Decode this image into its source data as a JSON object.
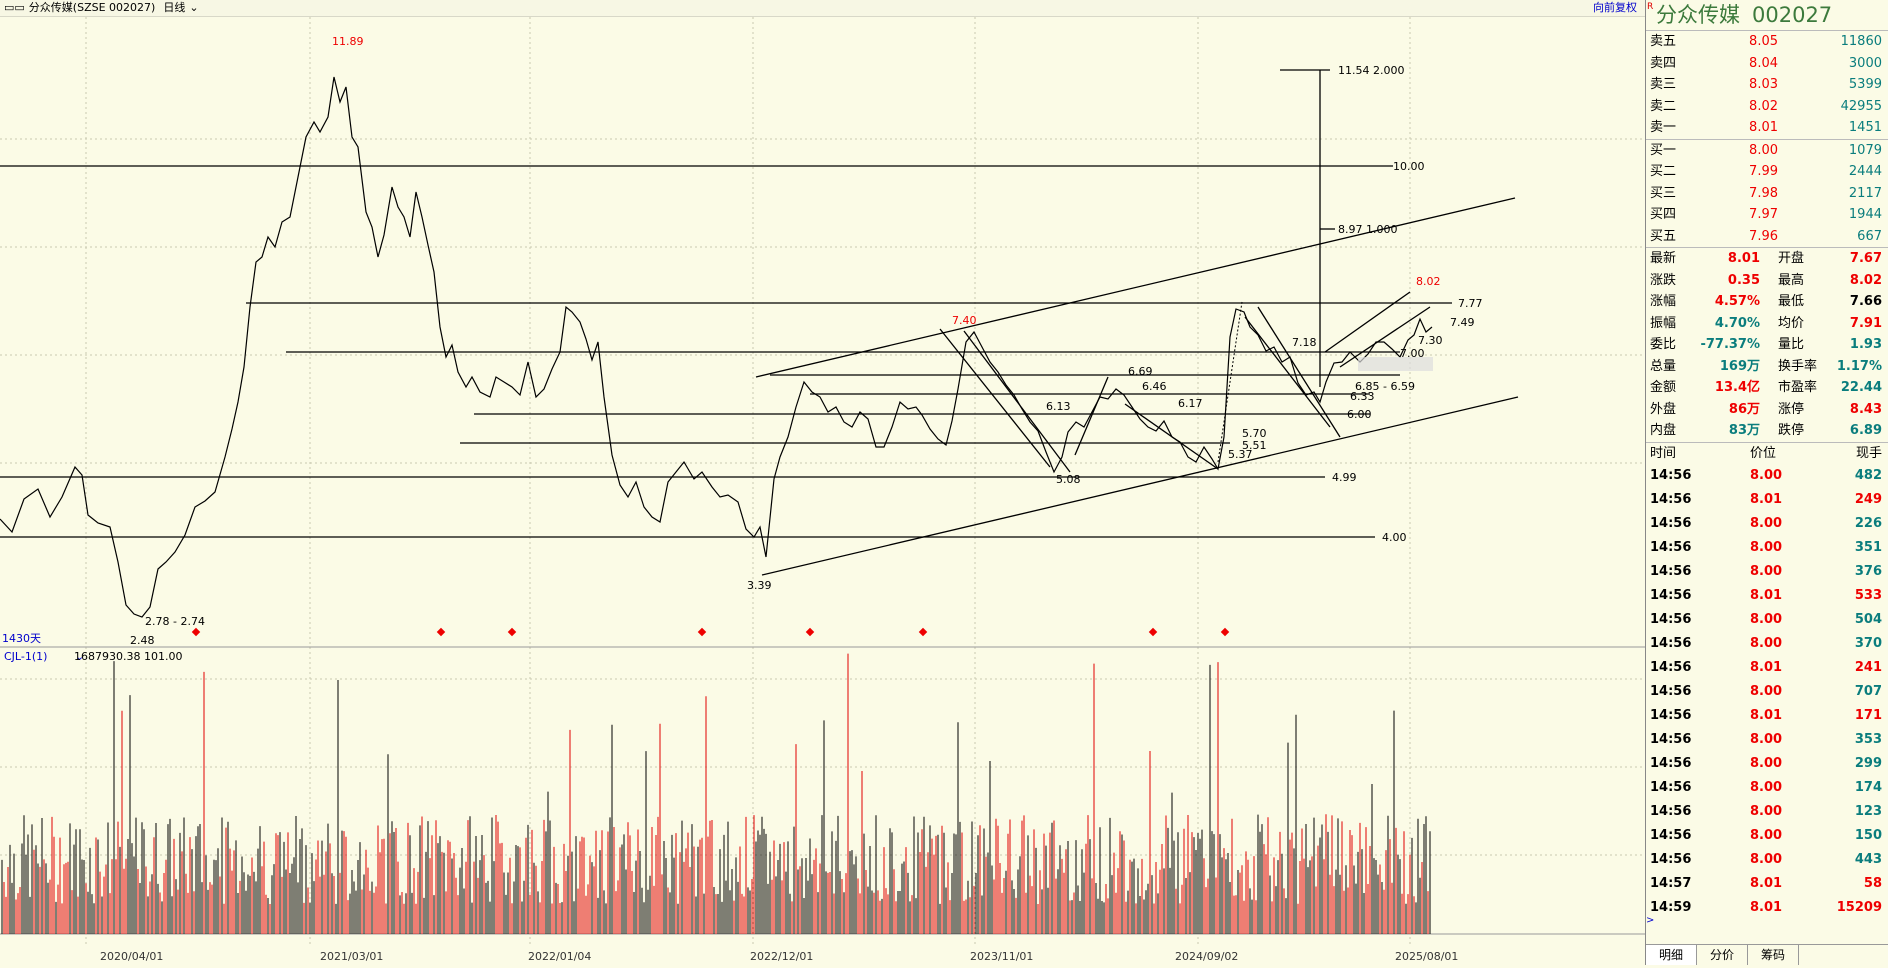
{
  "header": {
    "icon": "window-menu-icon",
    "title": "分众传媒(SZSE 002027)",
    "period": "日线",
    "restore": "向前复权"
  },
  "chart": {
    "range_label": "1430天",
    "volume_indicator": "CJL-1(1)",
    "volume_values": "1687930.38   101.00",
    "date_ticks": [
      "2020/04/01",
      "2021/03/01",
      "2022/01/04",
      "2022/12/01",
      "2023/11/01",
      "2024/09/02",
      "2025/08/01"
    ],
    "price_annotations": {
      "high": "11.89",
      "low": "2.48",
      "low_range": "2.78 - 2.74",
      "low2": "3.39",
      "peak_mid": "7.40",
      "recent_high": "8.02",
      "low_mid": "5.08"
    },
    "level_labels": {
      "l1154": "11.54  2.000",
      "l1000": "10.00",
      "l897": "8.97  1.000",
      "l777": "7.77",
      "l749": "7.49",
      "l730": "7.30",
      "l718": "7.18",
      "l700": "7.00",
      "l669": "6.69",
      "l659": "6.85 - 6.59",
      "l646": "6.46",
      "l633": "6.33",
      "l617": "6.17",
      "l613": "6.13",
      "l600": "6.00",
      "l570": "5.70",
      "l551": "5.51",
      "l537": "5.37",
      "l499": "4.99",
      "l400": "4.00"
    }
  },
  "stock": {
    "name": "分众传媒",
    "code": "002027"
  },
  "order_book": {
    "asks": [
      {
        "label": "卖五",
        "price": "8.05",
        "vol": "11860"
      },
      {
        "label": "卖四",
        "price": "8.04",
        "vol": "3000"
      },
      {
        "label": "卖三",
        "price": "8.03",
        "vol": "5399"
      },
      {
        "label": "卖二",
        "price": "8.02",
        "vol": "42955"
      },
      {
        "label": "卖一",
        "price": "8.01",
        "vol": "1451"
      }
    ],
    "bids": [
      {
        "label": "买一",
        "price": "8.00",
        "vol": "1079"
      },
      {
        "label": "买二",
        "price": "7.99",
        "vol": "2444"
      },
      {
        "label": "买三",
        "price": "7.98",
        "vol": "2117"
      },
      {
        "label": "买四",
        "price": "7.97",
        "vol": "1944"
      },
      {
        "label": "买五",
        "price": "7.96",
        "vol": "667"
      }
    ]
  },
  "quote": [
    {
      "a": "最新",
      "av": "8.01",
      "ac": "red",
      "b": "开盘",
      "bv": "7.67",
      "bc": "red"
    },
    {
      "a": "涨跌",
      "av": "0.35",
      "ac": "red",
      "b": "最高",
      "bv": "8.02",
      "bc": "red"
    },
    {
      "a": "涨幅",
      "av": "4.57%",
      "ac": "red",
      "b": "最低",
      "bv": "7.66",
      "bc": "blk"
    },
    {
      "a": "振幅",
      "av": "4.70%",
      "ac": "blue",
      "b": "均价",
      "bv": "7.91",
      "bc": "red"
    },
    {
      "a": "委比",
      "av": "-77.37%",
      "ac": "grn",
      "b": "量比",
      "bv": "1.93",
      "bc": "blue"
    },
    {
      "a": "总量",
      "av": "169万",
      "ac": "blue",
      "b": "换手率",
      "bv": "1.17%",
      "bc": "blue"
    },
    {
      "a": "金额",
      "av": "13.4亿",
      "ac": "red",
      "b": "市盈率",
      "bv": "22.44",
      "bc": "blue"
    },
    {
      "a": "外盘",
      "av": "86万",
      "ac": "red",
      "b": "涨停",
      "bv": "8.43",
      "bc": "red"
    },
    {
      "a": "内盘",
      "av": "83万",
      "ac": "blue",
      "b": "跌停",
      "bv": "6.89",
      "bc": "blue"
    }
  ],
  "ticks_header": {
    "time": "时间",
    "price": "价位",
    "vol": "现手"
  },
  "ticks": [
    {
      "t": "14:56",
      "p": "8.00",
      "v": "482",
      "c": "g"
    },
    {
      "t": "14:56",
      "p": "8.01",
      "v": "249",
      "c": "r"
    },
    {
      "t": "14:56",
      "p": "8.00",
      "v": "226",
      "c": "g"
    },
    {
      "t": "14:56",
      "p": "8.00",
      "v": "351",
      "c": "g"
    },
    {
      "t": "14:56",
      "p": "8.00",
      "v": "376",
      "c": "g"
    },
    {
      "t": "14:56",
      "p": "8.01",
      "v": "533",
      "c": "r"
    },
    {
      "t": "14:56",
      "p": "8.00",
      "v": "504",
      "c": "g"
    },
    {
      "t": "14:56",
      "p": "8.00",
      "v": "370",
      "c": "g"
    },
    {
      "t": "14:56",
      "p": "8.01",
      "v": "241",
      "c": "r"
    },
    {
      "t": "14:56",
      "p": "8.00",
      "v": "707",
      "c": "g"
    },
    {
      "t": "14:56",
      "p": "8.01",
      "v": "171",
      "c": "r"
    },
    {
      "t": "14:56",
      "p": "8.00",
      "v": "353",
      "c": "g"
    },
    {
      "t": "14:56",
      "p": "8.00",
      "v": "299",
      "c": "g"
    },
    {
      "t": "14:56",
      "p": "8.00",
      "v": "174",
      "c": "g"
    },
    {
      "t": "14:56",
      "p": "8.00",
      "v": "123",
      "c": "g"
    },
    {
      "t": "14:56",
      "p": "8.00",
      "v": "150",
      "c": "g"
    },
    {
      "t": "14:56",
      "p": "8.00",
      "v": "443",
      "c": "g"
    },
    {
      "t": "14:57",
      "p": "8.01",
      "v": "58",
      "c": "r"
    },
    {
      "t": "14:59",
      "p": "8.01",
      "v": "15209",
      "c": "r"
    }
  ],
  "tabs": [
    "明细",
    "分价",
    "筹码"
  ],
  "colors": {
    "up": "#e00000",
    "down": "#000000",
    "bg": "#fbfbe6",
    "accent": "#0a7d7d"
  }
}
